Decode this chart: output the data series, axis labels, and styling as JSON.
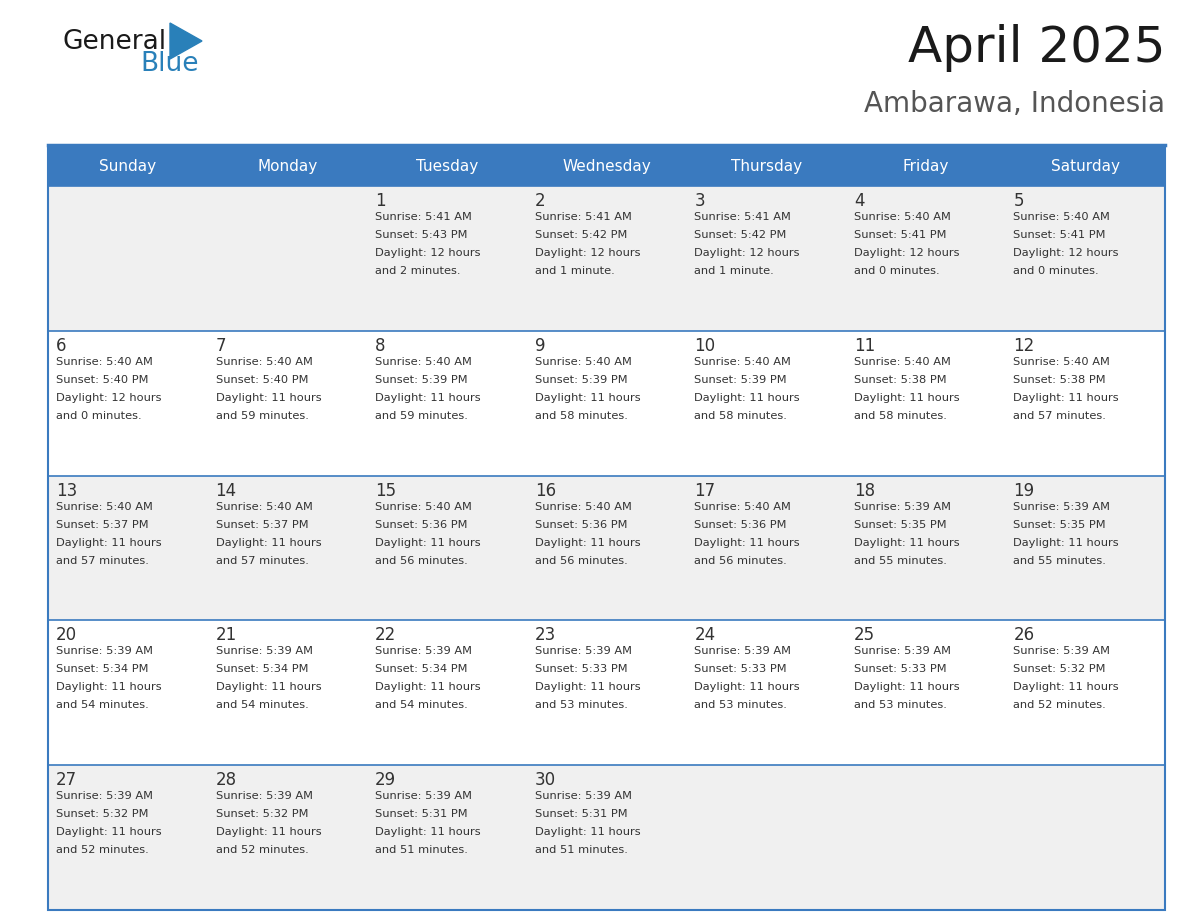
{
  "title": "April 2025",
  "subtitle": "Ambarawa, Indonesia",
  "title_fontsize": 36,
  "subtitle_fontsize": 20,
  "header_bg_color": "#3a7abf",
  "header_text_color": "#ffffff",
  "cell_bg_color_odd": "#f0f0f0",
  "cell_bg_color_even": "#ffffff",
  "cell_text_color": "#333333",
  "day_number_color": "#333333",
  "border_color": "#3a7abf",
  "days_of_week": [
    "Sunday",
    "Monday",
    "Tuesday",
    "Wednesday",
    "Thursday",
    "Friday",
    "Saturday"
  ],
  "calendar_data": [
    [
      {
        "day": "",
        "sunrise": "",
        "sunset": "",
        "daylight": ""
      },
      {
        "day": "",
        "sunrise": "",
        "sunset": "",
        "daylight": ""
      },
      {
        "day": "1",
        "sunrise": "5:41 AM",
        "sunset": "5:43 PM",
        "daylight": "12 hours\nand 2 minutes."
      },
      {
        "day": "2",
        "sunrise": "5:41 AM",
        "sunset": "5:42 PM",
        "daylight": "12 hours\nand 1 minute."
      },
      {
        "day": "3",
        "sunrise": "5:41 AM",
        "sunset": "5:42 PM",
        "daylight": "12 hours\nand 1 minute."
      },
      {
        "day": "4",
        "sunrise": "5:40 AM",
        "sunset": "5:41 PM",
        "daylight": "12 hours\nand 0 minutes."
      },
      {
        "day": "5",
        "sunrise": "5:40 AM",
        "sunset": "5:41 PM",
        "daylight": "12 hours\nand 0 minutes."
      }
    ],
    [
      {
        "day": "6",
        "sunrise": "5:40 AM",
        "sunset": "5:40 PM",
        "daylight": "12 hours\nand 0 minutes."
      },
      {
        "day": "7",
        "sunrise": "5:40 AM",
        "sunset": "5:40 PM",
        "daylight": "11 hours\nand 59 minutes."
      },
      {
        "day": "8",
        "sunrise": "5:40 AM",
        "sunset": "5:39 PM",
        "daylight": "11 hours\nand 59 minutes."
      },
      {
        "day": "9",
        "sunrise": "5:40 AM",
        "sunset": "5:39 PM",
        "daylight": "11 hours\nand 58 minutes."
      },
      {
        "day": "10",
        "sunrise": "5:40 AM",
        "sunset": "5:39 PM",
        "daylight": "11 hours\nand 58 minutes."
      },
      {
        "day": "11",
        "sunrise": "5:40 AM",
        "sunset": "5:38 PM",
        "daylight": "11 hours\nand 58 minutes."
      },
      {
        "day": "12",
        "sunrise": "5:40 AM",
        "sunset": "5:38 PM",
        "daylight": "11 hours\nand 57 minutes."
      }
    ],
    [
      {
        "day": "13",
        "sunrise": "5:40 AM",
        "sunset": "5:37 PM",
        "daylight": "11 hours\nand 57 minutes."
      },
      {
        "day": "14",
        "sunrise": "5:40 AM",
        "sunset": "5:37 PM",
        "daylight": "11 hours\nand 57 minutes."
      },
      {
        "day": "15",
        "sunrise": "5:40 AM",
        "sunset": "5:36 PM",
        "daylight": "11 hours\nand 56 minutes."
      },
      {
        "day": "16",
        "sunrise": "5:40 AM",
        "sunset": "5:36 PM",
        "daylight": "11 hours\nand 56 minutes."
      },
      {
        "day": "17",
        "sunrise": "5:40 AM",
        "sunset": "5:36 PM",
        "daylight": "11 hours\nand 56 minutes."
      },
      {
        "day": "18",
        "sunrise": "5:39 AM",
        "sunset": "5:35 PM",
        "daylight": "11 hours\nand 55 minutes."
      },
      {
        "day": "19",
        "sunrise": "5:39 AM",
        "sunset": "5:35 PM",
        "daylight": "11 hours\nand 55 minutes."
      }
    ],
    [
      {
        "day": "20",
        "sunrise": "5:39 AM",
        "sunset": "5:34 PM",
        "daylight": "11 hours\nand 54 minutes."
      },
      {
        "day": "21",
        "sunrise": "5:39 AM",
        "sunset": "5:34 PM",
        "daylight": "11 hours\nand 54 minutes."
      },
      {
        "day": "22",
        "sunrise": "5:39 AM",
        "sunset": "5:34 PM",
        "daylight": "11 hours\nand 54 minutes."
      },
      {
        "day": "23",
        "sunrise": "5:39 AM",
        "sunset": "5:33 PM",
        "daylight": "11 hours\nand 53 minutes."
      },
      {
        "day": "24",
        "sunrise": "5:39 AM",
        "sunset": "5:33 PM",
        "daylight": "11 hours\nand 53 minutes."
      },
      {
        "day": "25",
        "sunrise": "5:39 AM",
        "sunset": "5:33 PM",
        "daylight": "11 hours\nand 53 minutes."
      },
      {
        "day": "26",
        "sunrise": "5:39 AM",
        "sunset": "5:32 PM",
        "daylight": "11 hours\nand 52 minutes."
      }
    ],
    [
      {
        "day": "27",
        "sunrise": "5:39 AM",
        "sunset": "5:32 PM",
        "daylight": "11 hours\nand 52 minutes."
      },
      {
        "day": "28",
        "sunrise": "5:39 AM",
        "sunset": "5:32 PM",
        "daylight": "11 hours\nand 52 minutes."
      },
      {
        "day": "29",
        "sunrise": "5:39 AM",
        "sunset": "5:31 PM",
        "daylight": "11 hours\nand 51 minutes."
      },
      {
        "day": "30",
        "sunrise": "5:39 AM",
        "sunset": "5:31 PM",
        "daylight": "11 hours\nand 51 minutes."
      },
      {
        "day": "",
        "sunrise": "",
        "sunset": "",
        "daylight": ""
      },
      {
        "day": "",
        "sunrise": "",
        "sunset": "",
        "daylight": ""
      },
      {
        "day": "",
        "sunrise": "",
        "sunset": "",
        "daylight": ""
      }
    ]
  ],
  "logo_text_general": "General",
  "logo_text_blue": "Blue",
  "general_color": "#1a1a1a",
  "blue_color": "#2980b9"
}
